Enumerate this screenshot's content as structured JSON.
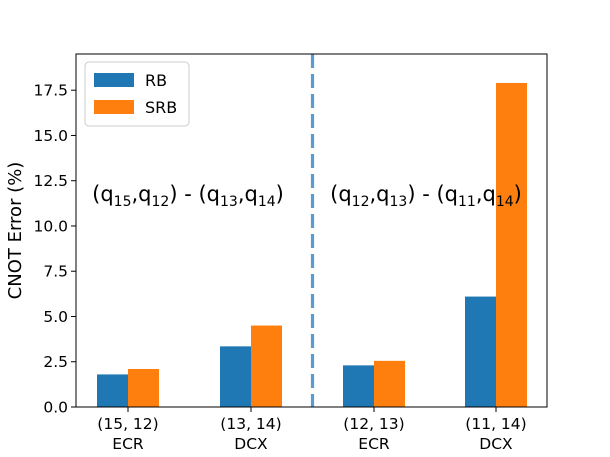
{
  "chart_data": {
    "type": "bar",
    "title": "",
    "xlabel": "",
    "ylabel": "CNOT Error (%)",
    "ylim": [
      0,
      19.5
    ],
    "yticks": [
      "0.0",
      "2.5",
      "5.0",
      "7.5",
      "10.0",
      "12.5",
      "15.0",
      "17.5"
    ],
    "categories": [
      {
        "pair": "(15, 12)",
        "gate": "ECR"
      },
      {
        "pair": "(13, 14)",
        "gate": "DCX"
      },
      {
        "pair": "(12, 13)",
        "gate": "ECR"
      },
      {
        "pair": "(11, 14)",
        "gate": "DCX"
      }
    ],
    "series": [
      {
        "name": "RB",
        "color": "#1f77b4",
        "values": [
          1.8,
          3.35,
          2.3,
          6.1
        ]
      },
      {
        "name": "SRB",
        "color": "#ff7f0e",
        "values": [
          2.1,
          4.5,
          2.55,
          17.9
        ]
      }
    ],
    "legend_position": "top-left",
    "divider": {
      "after_category": 1,
      "color": "#5b9bd5",
      "style": "dashed"
    },
    "annotations": [
      {
        "id": "left",
        "parts": [
          {
            "t": "(q",
            "sub": false
          },
          {
            "t": "15",
            "sub": true
          },
          {
            "t": ",q",
            "sub": false
          },
          {
            "t": "12",
            "sub": true
          },
          {
            "t": ") - (q",
            "sub": false
          },
          {
            "t": "13",
            "sub": true
          },
          {
            "t": ",q",
            "sub": false
          },
          {
            "t": "14",
            "sub": true
          },
          {
            "t": ")",
            "sub": false
          }
        ]
      },
      {
        "id": "right",
        "parts": [
          {
            "t": "(q",
            "sub": false
          },
          {
            "t": "12",
            "sub": true
          },
          {
            "t": ",q",
            "sub": false
          },
          {
            "t": "13",
            "sub": true
          },
          {
            "t": ") - (q",
            "sub": false
          },
          {
            "t": "11",
            "sub": true
          },
          {
            "t": ",q",
            "sub": false
          },
          {
            "t": "14",
            "sub": true
          },
          {
            "t": ")",
            "sub": false
          }
        ]
      }
    ]
  }
}
